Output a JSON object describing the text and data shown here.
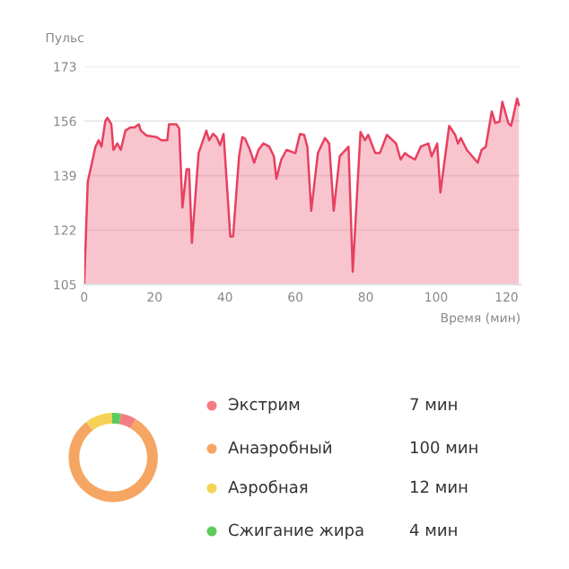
{
  "chart_data": [
    {
      "type": "area",
      "ylabel": "Пульс",
      "xlabel": "Время (мин)",
      "xlim": [
        0,
        124
      ],
      "ylim": [
        105,
        173
      ],
      "xticks": [
        0,
        20,
        40,
        60,
        80,
        100,
        120
      ],
      "yticks": [
        105,
        122,
        139,
        156,
        173
      ],
      "grid": "y",
      "series": [
        {
          "color": "#e8405f",
          "x": [
            0,
            1,
            3.2,
            4.1,
            4.9,
            6,
            6.6,
            7.7,
            8.3,
            9.4,
            10.4,
            11.7,
            13.1,
            14.3,
            15.5,
            16.1,
            17.7,
            20.6,
            21.9,
            23.6,
            24.1,
            26.2,
            27,
            27.9,
            29.1,
            29.8,
            30.6,
            32.5,
            34.7,
            35.5,
            36.6,
            37.6,
            38.6,
            39.6,
            41.5,
            42.3,
            44,
            44.9,
            45.7,
            47.1,
            48.3,
            49.5,
            50.9,
            52.6,
            53.9,
            54.6,
            56,
            57.5,
            60,
            61.3,
            62.5,
            63.4,
            64.5,
            66.4,
            68.4,
            69.6,
            70.9,
            72.6,
            75.1,
            76.3,
            78.5,
            79.8,
            80.7,
            82.7,
            84,
            86,
            88.6,
            89.9,
            91.1,
            92.3,
            94,
            95.6,
            97.8,
            98.7,
            100.3,
            101.2,
            103.7,
            105.4,
            106.2,
            107,
            108.7,
            111.8,
            112.9,
            114.1,
            115.8,
            116.8,
            118,
            118.8,
            120.5,
            121.3,
            123,
            123.5
          ],
          "values": [
            105,
            137,
            148,
            150,
            148,
            156,
            157,
            155,
            147,
            149,
            147,
            153,
            154,
            154,
            155,
            153,
            151.5,
            151,
            150,
            150,
            155,
            155,
            153.6,
            129,
            141,
            141,
            118,
            146,
            153,
            150,
            152,
            151,
            148.5,
            152,
            120,
            120,
            145,
            151,
            150.5,
            147,
            143,
            147,
            149,
            148,
            145,
            138,
            144,
            147,
            146,
            152,
            151.7,
            148,
            128,
            146,
            150.7,
            149,
            128,
            145,
            148,
            109,
            152.6,
            150,
            151.7,
            146,
            146,
            151.7,
            149,
            144,
            146,
            145,
            144,
            148,
            149,
            145,
            149,
            133.7,
            154.5,
            151.7,
            149,
            150.7,
            147,
            143,
            147,
            148,
            159,
            155.4,
            155.8,
            162,
            155.4,
            154.5,
            163,
            161
          ]
        }
      ]
    },
    {
      "type": "donut",
      "categories": [
        "Экстрим",
        "Анаэробный",
        "Аэробная",
        "Сжигание жира"
      ],
      "values": [
        7,
        100,
        12,
        4
      ],
      "colors": [
        "#f47d83",
        "#f6a663",
        "#f5d255",
        "#5ccb5a"
      ],
      "value_labels": [
        "7 мин",
        "100 мин",
        "12 мин",
        "4 мин"
      ],
      "legend": "right"
    }
  ]
}
